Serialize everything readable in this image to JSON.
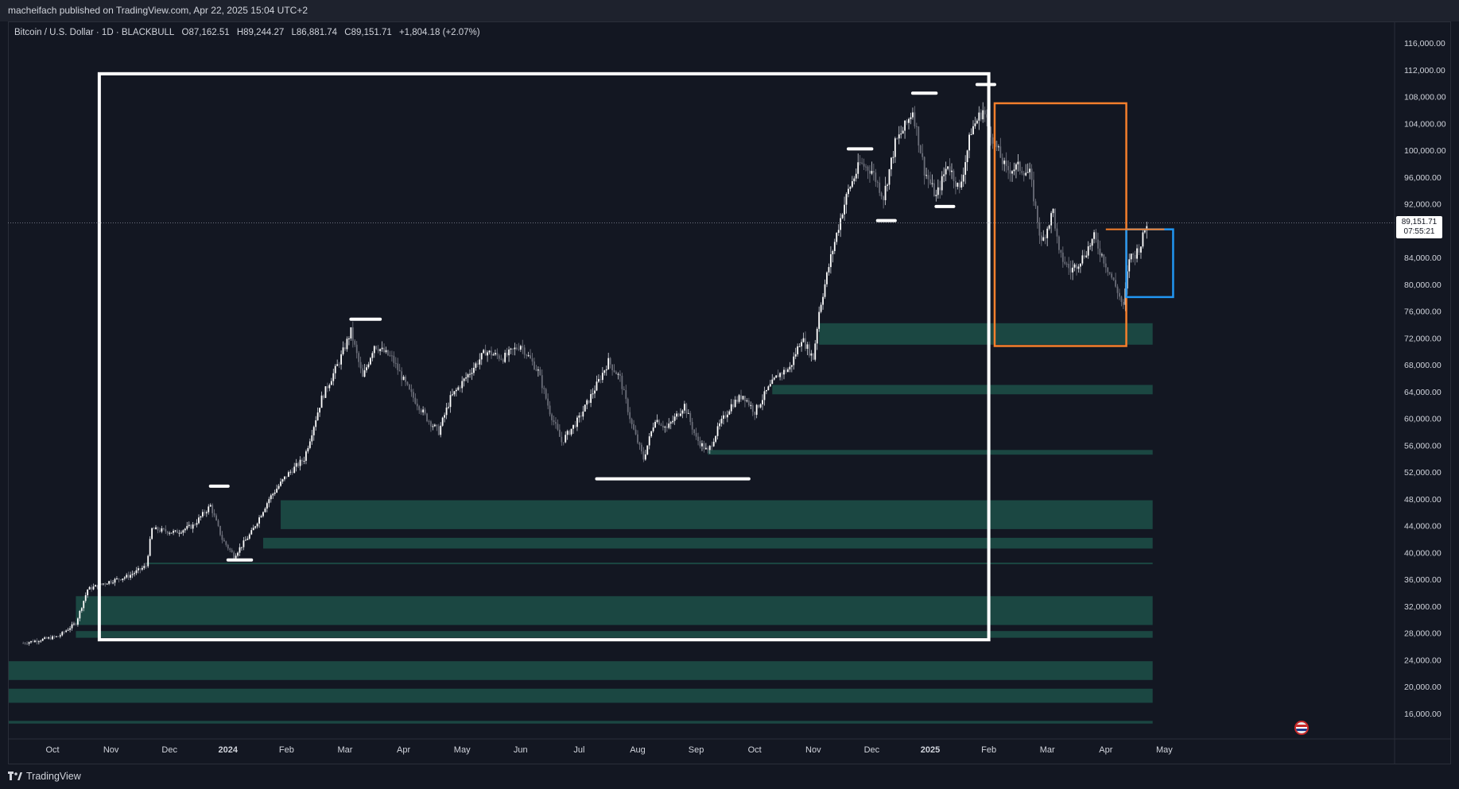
{
  "header": {
    "published": "macheifach published on TradingView.com, Apr 22, 2025 15:04 UTC+2"
  },
  "legend": {
    "symbol": "Bitcoin / U.S. Dollar · 1D · BLACKBULL",
    "open": "O87,162.51",
    "high": "H89,244.27",
    "low": "L86,881.74",
    "close": "C89,151.71",
    "change": "+1,804.18 (+2.07%)"
  },
  "price_label": {
    "price": "89,151.71",
    "countdown": "07:55:21"
  },
  "footer": {
    "brand": "TradingView"
  },
  "colors": {
    "background": "#131722",
    "zone": "#1b4a45",
    "orange": "#f57f2c",
    "blue": "#2196f3",
    "white": "#ffffff",
    "candle": "#b2b5be"
  },
  "chart_data": {
    "type": "candlestick",
    "symbol": "BTCUSD",
    "timeframe": "1D",
    "ylim": [
      13000,
      119000
    ],
    "y_ticks": [
      16000,
      20000,
      24000,
      28000,
      32000,
      36000,
      40000,
      44000,
      48000,
      52000,
      56000,
      60000,
      64000,
      68000,
      72000,
      76000,
      80000,
      84000,
      88000,
      92000,
      96000,
      100000,
      104000,
      108000,
      112000,
      116000
    ],
    "y_tick_labels": [
      "16,000.00",
      "20,000.00",
      "24,000.00",
      "28,000.00",
      "32,000.00",
      "36,000.00",
      "40,000.00",
      "44,000.00",
      "48,000.00",
      "52,000.00",
      "56,000.00",
      "60,000.00",
      "64,000.00",
      "68,000.00",
      "72,000.00",
      "76,000.00",
      "80,000.00",
      "84,000.00",
      "88,000.00",
      "92,000.00",
      "96,000.00",
      "100,000.00",
      "104,000.00",
      "108,000.00",
      "112,000.00",
      "116,000.00"
    ],
    "x_labels": [
      {
        "label": "Oct",
        "t": 0.5
      },
      {
        "label": "Nov",
        "t": 1.5
      },
      {
        "label": "Dec",
        "t": 2.5
      },
      {
        "label": "2024",
        "t": 3.5
      },
      {
        "label": "Feb",
        "t": 4.5
      },
      {
        "label": "Mar",
        "t": 5.5
      },
      {
        "label": "Apr",
        "t": 6.5
      },
      {
        "label": "May",
        "t": 7.5
      },
      {
        "label": "Jun",
        "t": 8.5
      },
      {
        "label": "Jul",
        "t": 9.5
      },
      {
        "label": "Aug",
        "t": 10.5
      },
      {
        "label": "Sep",
        "t": 11.5
      },
      {
        "label": "Oct",
        "t": 12.5
      },
      {
        "label": "Nov",
        "t": 13.5
      },
      {
        "label": "Dec",
        "t": 14.5
      },
      {
        "label": "2025",
        "t": 15.5
      },
      {
        "label": "Feb",
        "t": 16.5
      },
      {
        "label": "Mar",
        "t": 17.5
      },
      {
        "label": "Apr",
        "t": 18.5
      },
      {
        "label": "May",
        "t": 19.5
      }
    ],
    "price_path": [
      [
        0.0,
        26500
      ],
      [
        0.6,
        27500
      ],
      [
        0.9,
        29500
      ],
      [
        1.1,
        34500
      ],
      [
        1.4,
        35500
      ],
      [
        1.8,
        36500
      ],
      [
        2.1,
        38000
      ],
      [
        2.2,
        43500
      ],
      [
        2.6,
        43000
      ],
      [
        2.9,
        44000
      ],
      [
        3.2,
        47000
      ],
      [
        3.4,
        42000
      ],
      [
        3.6,
        39500
      ],
      [
        3.9,
        43000
      ],
      [
        4.2,
        48000
      ],
      [
        4.5,
        51500
      ],
      [
        4.8,
        54000
      ],
      [
        5.1,
        63000
      ],
      [
        5.4,
        68500
      ],
      [
        5.6,
        73000
      ],
      [
        5.8,
        66000
      ],
      [
        6.0,
        71000
      ],
      [
        6.3,
        69000
      ],
      [
        6.6,
        64000
      ],
      [
        6.9,
        60000
      ],
      [
        7.1,
        58000
      ],
      [
        7.3,
        63000
      ],
      [
        7.6,
        66500
      ],
      [
        7.9,
        70000
      ],
      [
        8.2,
        69000
      ],
      [
        8.5,
        71000
      ],
      [
        8.8,
        67000
      ],
      [
        9.0,
        61000
      ],
      [
        9.2,
        56500
      ],
      [
        9.5,
        60000
      ],
      [
        9.8,
        65000
      ],
      [
        10.0,
        68500
      ],
      [
        10.2,
        66000
      ],
      [
        10.4,
        59000
      ],
      [
        10.6,
        54000
      ],
      [
        10.8,
        60000
      ],
      [
        11.0,
        58500
      ],
      [
        11.3,
        62000
      ],
      [
        11.5,
        57000
      ],
      [
        11.7,
        55000
      ],
      [
        11.9,
        59000
      ],
      [
        12.1,
        62000
      ],
      [
        12.3,
        63500
      ],
      [
        12.5,
        61000
      ],
      [
        12.7,
        64000
      ],
      [
        12.9,
        66500
      ],
      [
        13.1,
        67500
      ],
      [
        13.3,
        72000
      ],
      [
        13.5,
        69000
      ],
      [
        13.6,
        76000
      ],
      [
        13.8,
        84000
      ],
      [
        14.0,
        91000
      ],
      [
        14.1,
        94000
      ],
      [
        14.3,
        98000
      ],
      [
        14.5,
        97000
      ],
      [
        14.7,
        93000
      ],
      [
        14.9,
        101000
      ],
      [
        15.1,
        104000
      ],
      [
        15.2,
        106000
      ],
      [
        15.4,
        97000
      ],
      [
        15.6,
        93000
      ],
      [
        15.8,
        98000
      ],
      [
        16.0,
        94000
      ],
      [
        16.2,
        103000
      ],
      [
        16.4,
        106000
      ],
      [
        16.6,
        101000
      ],
      [
        16.8,
        97000
      ],
      [
        17.0,
        97500
      ],
      [
        17.2,
        96500
      ],
      [
        17.4,
        86000
      ],
      [
        17.6,
        91000
      ],
      [
        17.7,
        84500
      ],
      [
        17.9,
        82000
      ],
      [
        18.1,
        84000
      ],
      [
        18.3,
        87000
      ],
      [
        18.5,
        83000
      ],
      [
        18.7,
        79000
      ],
      [
        18.8,
        76500
      ],
      [
        18.9,
        84000
      ],
      [
        19.0,
        84500
      ],
      [
        19.1,
        86000
      ],
      [
        19.2,
        89150
      ]
    ],
    "zones": [
      {
        "y0": 71000,
        "y1": 74200,
        "t0": 13.6,
        "t1": 19.3
      },
      {
        "y0": 63600,
        "y1": 65000,
        "t0": 12.8,
        "t1": 19.3
      },
      {
        "y0": 54600,
        "y1": 55300,
        "t0": 11.7,
        "t1": 19.3
      },
      {
        "y0": 43500,
        "y1": 47800,
        "t0": 4.4,
        "t1": 19.3
      },
      {
        "y0": 40600,
        "y1": 42200,
        "t0": 4.1,
        "t1": 19.3
      },
      {
        "y0": 38300,
        "y1": 38500,
        "t0": 2.1,
        "t1": 19.3
      },
      {
        "y0": 29200,
        "y1": 33500,
        "t0": 0.9,
        "t1": 19.3
      },
      {
        "y0": 27300,
        "y1": 28300,
        "t0": 0.9,
        "t1": 19.3
      },
      {
        "y0": 21000,
        "y1": 23800,
        "t0": -1.0,
        "t1": 19.3
      },
      {
        "y0": 17600,
        "y1": 19700,
        "t0": -1.0,
        "t1": 19.3
      },
      {
        "y0": 14500,
        "y1": 14900,
        "t0": -1.0,
        "t1": 19.3
      }
    ],
    "levels": [
      {
        "y": 49900,
        "t0": 3.2,
        "t1": 3.5
      },
      {
        "y": 38900,
        "t0": 3.5,
        "t1": 3.9
      },
      {
        "y": 74800,
        "t0": 5.6,
        "t1": 6.1
      },
      {
        "y": 51000,
        "t0": 9.8,
        "t1": 12.4
      },
      {
        "y": 100200,
        "t0": 14.1,
        "t1": 14.5
      },
      {
        "y": 89500,
        "t0": 14.6,
        "t1": 14.9
      },
      {
        "y": 108500,
        "t0": 15.2,
        "t1": 15.6
      },
      {
        "y": 91600,
        "t0": 15.6,
        "t1": 15.9
      },
      {
        "y": 109800,
        "t0": 16.3,
        "t1": 16.6
      }
    ],
    "boxes": [
      {
        "color": "white",
        "y0": 27000,
        "y1": 111400,
        "t0": 1.3,
        "t1": 16.5
      },
      {
        "color": "orange",
        "y0": 70800,
        "y1": 107000,
        "t0": 16.6,
        "t1": 18.85
      },
      {
        "color": "blue",
        "y0": 78100,
        "y1": 88200,
        "t0": 18.85,
        "t1": 19.65
      }
    ],
    "orange_line": {
      "y": 88200,
      "t0": 18.5,
      "t1": 19.5
    },
    "last_price": 89151.71
  }
}
